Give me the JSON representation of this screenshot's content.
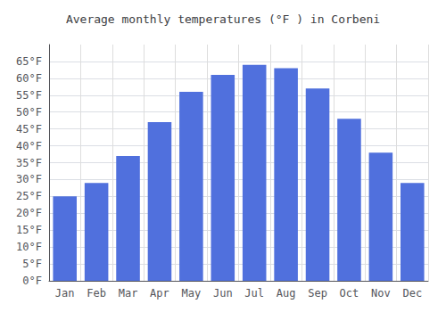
{
  "chart_data": {
    "type": "bar",
    "title": "Average monthly temperatures (°F ) in Corbeni",
    "categories": [
      "Jan",
      "Feb",
      "Mar",
      "Apr",
      "May",
      "Jun",
      "Jul",
      "Aug",
      "Sep",
      "Oct",
      "Nov",
      "Dec"
    ],
    "values": [
      25,
      29,
      37,
      47,
      56,
      61,
      64,
      63,
      57,
      48,
      38,
      29
    ],
    "ylim": [
      0,
      70
    ],
    "yticks": [
      {
        "value": 0,
        "label": "0°F"
      },
      {
        "value": 5,
        "label": "5°F"
      },
      {
        "value": 10,
        "label": "10°F"
      },
      {
        "value": 15,
        "label": "15°F"
      },
      {
        "value": 20,
        "label": "20°F"
      },
      {
        "value": 25,
        "label": "25°F"
      },
      {
        "value": 30,
        "label": "30°F"
      },
      {
        "value": 35,
        "label": "35°F"
      },
      {
        "value": 40,
        "label": "40°F"
      },
      {
        "value": 45,
        "label": "45°F"
      },
      {
        "value": 50,
        "label": "50°F"
      },
      {
        "value": 55,
        "label": "55°F"
      },
      {
        "value": 60,
        "label": "60°F"
      },
      {
        "value": 65,
        "label": "65°F"
      }
    ],
    "grid": true
  }
}
